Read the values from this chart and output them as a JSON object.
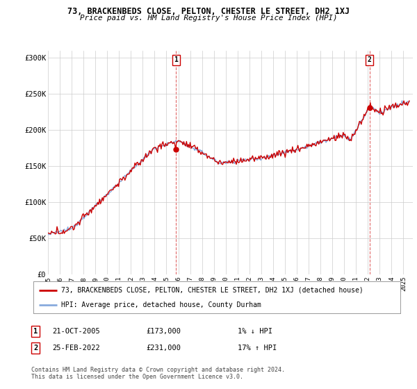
{
  "title": "73, BRACKENBEDS CLOSE, PELTON, CHESTER LE STREET, DH2 1XJ",
  "subtitle": "Price paid vs. HM Land Registry's House Price Index (HPI)",
  "ylabel_ticks": [
    "£0",
    "£50K",
    "£100K",
    "£150K",
    "£200K",
    "£250K",
    "£300K"
  ],
  "ylim": [
    0,
    310000
  ],
  "yticks": [
    0,
    50000,
    100000,
    150000,
    200000,
    250000,
    300000
  ],
  "xlim_start": 1995.0,
  "xlim_end": 2025.8,
  "sale1_x": 2005.81,
  "sale1_y": 173000,
  "sale1_label": "1",
  "sale1_date": "21-OCT-2005",
  "sale1_price": "£173,000",
  "sale1_hpi": "1% ↓ HPI",
  "sale2_x": 2022.15,
  "sale2_y": 231000,
  "sale2_label": "2",
  "sale2_date": "25-FEB-2022",
  "sale2_price": "£231,000",
  "sale2_hpi": "17% ↑ HPI",
  "line_color_red": "#cc0000",
  "line_color_blue": "#88aadd",
  "dashed_color": "#cc0000",
  "marker_color": "#cc0000",
  "background_color": "#ffffff",
  "grid_color": "#cccccc",
  "legend_label_red": "73, BRACKENBEDS CLOSE, PELTON, CHESTER LE STREET, DH2 1XJ (detached house)",
  "legend_label_blue": "HPI: Average price, detached house, County Durham",
  "footer": "Contains HM Land Registry data © Crown copyright and database right 2024.\nThis data is licensed under the Open Government Licence v3.0.",
  "xtick_years": [
    1995,
    1996,
    1997,
    1998,
    1999,
    2000,
    2001,
    2002,
    2003,
    2004,
    2005,
    2006,
    2007,
    2008,
    2009,
    2010,
    2011,
    2012,
    2013,
    2014,
    2015,
    2016,
    2017,
    2018,
    2019,
    2020,
    2021,
    2022,
    2023,
    2024,
    2025
  ]
}
